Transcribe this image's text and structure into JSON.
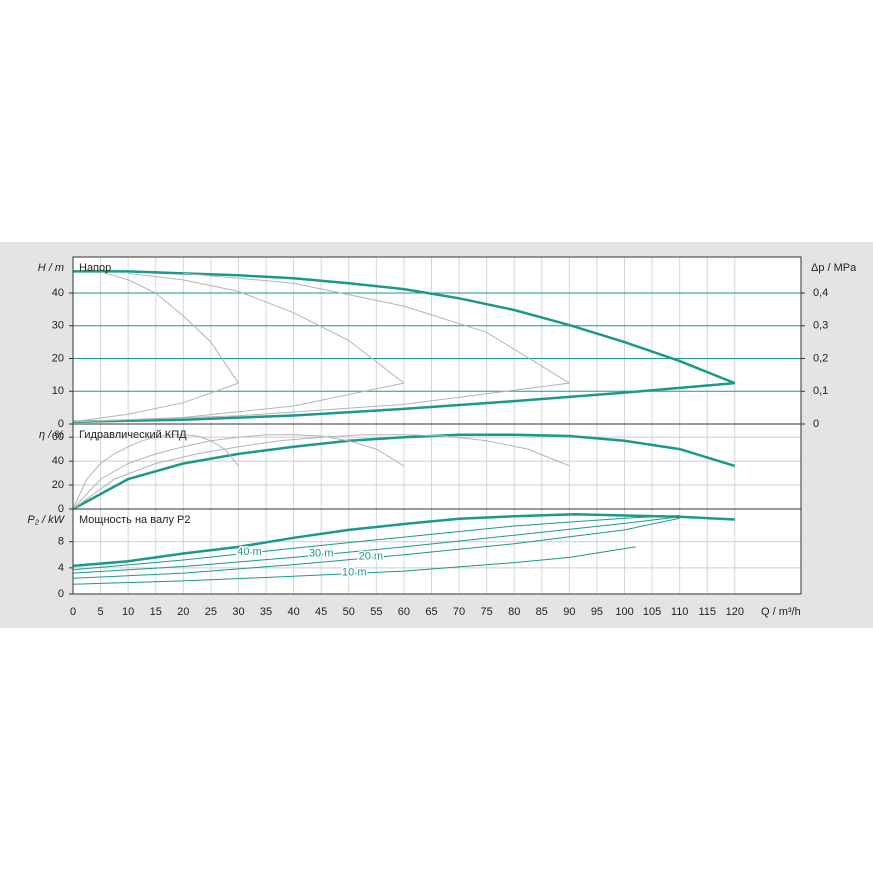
{
  "chart_data": [
    {
      "type": "line",
      "title": "Напор",
      "ylabel": "H / m",
      "y2label": "Δp / MPa",
      "xlim": [
        0,
        132
      ],
      "ylim": [
        0,
        51
      ],
      "yticks": [
        0,
        10,
        20,
        30,
        40
      ],
      "y2lim": [
        0,
        0.51
      ],
      "y2ticks": [
        0,
        {
          "value": 0.1,
          "label": "0,1"
        },
        {
          "value": 0.2,
          "label": "0,2"
        },
        {
          "value": 0.3,
          "label": "0,3"
        },
        {
          "value": 0.4,
          "label": "0,4"
        }
      ],
      "grid_color": "#1a9a88",
      "series": [
        {
          "color": "#1a9a88",
          "width": 2.5,
          "x": [
            0,
            10,
            20,
            30,
            40,
            50,
            60,
            70,
            80,
            90,
            100,
            110,
            120
          ],
          "values": [
            46.6,
            46.6,
            46,
            45.4,
            44.5,
            43,
            41.2,
            38.4,
            34.8,
            30.2,
            25,
            19.2,
            12.5
          ]
        },
        {
          "color": "#1a9a88",
          "width": 2.5,
          "x": [
            0,
            20,
            40,
            60,
            80,
            100,
            120
          ],
          "values": [
            0.7,
            1.3,
            2.6,
            4.6,
            7,
            9.6,
            12.5
          ]
        },
        {
          "color": "#b4b4b4",
          "width": 1,
          "x": [
            5,
            10,
            15,
            20,
            25,
            30
          ],
          "values": [
            46.5,
            44,
            40,
            33,
            25,
            12.5
          ]
        },
        {
          "color": "#b4b4b4",
          "width": 1,
          "x": [
            10,
            20,
            30,
            40,
            50,
            60
          ],
          "values": [
            46,
            44,
            40.5,
            34,
            25.5,
            12.5
          ]
        },
        {
          "color": "#b4b4b4",
          "width": 1,
          "x": [
            20,
            40,
            60,
            75,
            90
          ],
          "values": [
            46,
            43,
            36,
            28,
            12.5
          ]
        },
        {
          "color": "#b4b4b4",
          "width": 1,
          "x": [
            0,
            10,
            20,
            30
          ],
          "values": [
            0.7,
            3,
            6.5,
            12.5
          ]
        },
        {
          "color": "#b4b4b4",
          "width": 1,
          "x": [
            0,
            20,
            40,
            60
          ],
          "values": [
            0.7,
            2,
            5.5,
            12.5
          ]
        },
        {
          "color": "#b4b4b4",
          "width": 1,
          "x": [
            0,
            30,
            60,
            90
          ],
          "values": [
            0.7,
            2.5,
            6,
            12.5
          ]
        }
      ]
    },
    {
      "type": "line",
      "title": "Гидравлический КПД",
      "ylabel": "η / %",
      "xlim": [
        0,
        132
      ],
      "ylim": [
        0,
        71
      ],
      "yticks": [
        0,
        20,
        40,
        60
      ],
      "grid_color": "#cccccc",
      "series": [
        {
          "color": "#1a9a88",
          "width": 2.5,
          "x": [
            0,
            10,
            20,
            30,
            40,
            50,
            60,
            70,
            80,
            90,
            100,
            110,
            120
          ],
          "values": [
            0,
            25,
            38,
            46,
            52,
            57,
            60,
            62,
            62,
            61,
            57,
            50,
            36
          ]
        },
        {
          "color": "#b4b4b4",
          "width": 1,
          "x": [
            0,
            7.5,
            15,
            22.5,
            30,
            37.5,
            45,
            52.5,
            60,
            67.5,
            75,
            82.5,
            90
          ],
          "values": [
            0,
            25,
            38,
            46,
            52,
            57,
            60,
            62,
            62,
            61,
            57,
            50,
            36
          ]
        },
        {
          "color": "#b4b4b4",
          "width": 1,
          "x": [
            0,
            5,
            10,
            15,
            20,
            25,
            30,
            35,
            40,
            45,
            50,
            55,
            60
          ],
          "values": [
            0,
            25,
            38,
            46,
            52,
            57,
            60,
            62,
            62,
            61,
            57,
            50,
            36
          ]
        },
        {
          "color": "#b4b4b4",
          "width": 1,
          "x": [
            0,
            2.5,
            5,
            7.5,
            10,
            12.5,
            15,
            17.5,
            20,
            22.5,
            25,
            27.5,
            30
          ],
          "values": [
            0,
            25,
            38,
            46,
            52,
            57,
            60,
            62,
            62,
            61,
            57,
            50,
            36
          ]
        }
      ]
    },
    {
      "type": "line",
      "title": "Мощность на валу P2",
      "ylabel": "P₂ / kW",
      "xlabel": "Q / m³/h",
      "xlim": [
        0,
        132
      ],
      "xticks": [
        0,
        5,
        10,
        15,
        20,
        25,
        30,
        35,
        40,
        45,
        50,
        55,
        60,
        65,
        70,
        75,
        80,
        85,
        90,
        95,
        100,
        105,
        110,
        115,
        120
      ],
      "ylim": [
        0,
        13
      ],
      "yticks": [
        0,
        4,
        8
      ],
      "grid_color": "#cccccc",
      "series": [
        {
          "color": "#1a9a88",
          "width": 2.5,
          "x": [
            0,
            10,
            20,
            30,
            40,
            50,
            60,
            70,
            80,
            91,
            100,
            110,
            120
          ],
          "values": [
            4.3,
            5,
            6.2,
            7.2,
            8.6,
            9.8,
            10.7,
            11.5,
            11.9,
            12.2,
            12,
            11.8,
            11.4
          ]
        },
        {
          "name": "40 m",
          "color": "#1a9a88",
          "width": 1,
          "x": [
            0,
            20,
            40,
            60,
            80,
            100,
            110
          ],
          "values": [
            3.7,
            5.2,
            7,
            8.7,
            10.4,
            11.6,
            12
          ]
        },
        {
          "name": "30 m",
          "color": "#1a9a88",
          "width": 1,
          "x": [
            0,
            20,
            40,
            60,
            80,
            100,
            110
          ],
          "values": [
            3.2,
            4.2,
            5.6,
            7.2,
            9,
            10.8,
            11.8
          ]
        },
        {
          "name": "20 m",
          "color": "#1a9a88",
          "width": 1,
          "x": [
            0,
            20,
            40,
            60,
            80,
            100,
            110
          ],
          "values": [
            2.4,
            3.2,
            4.5,
            6,
            7.7,
            9.8,
            11.6
          ]
        },
        {
          "name": "10 m",
          "color": "#1a9a88",
          "width": 1,
          "x": [
            0,
            20,
            40,
            60,
            80,
            90,
            102
          ],
          "values": [
            1.5,
            2,
            2.7,
            3.5,
            4.8,
            5.6,
            7.2
          ]
        }
      ]
    }
  ]
}
